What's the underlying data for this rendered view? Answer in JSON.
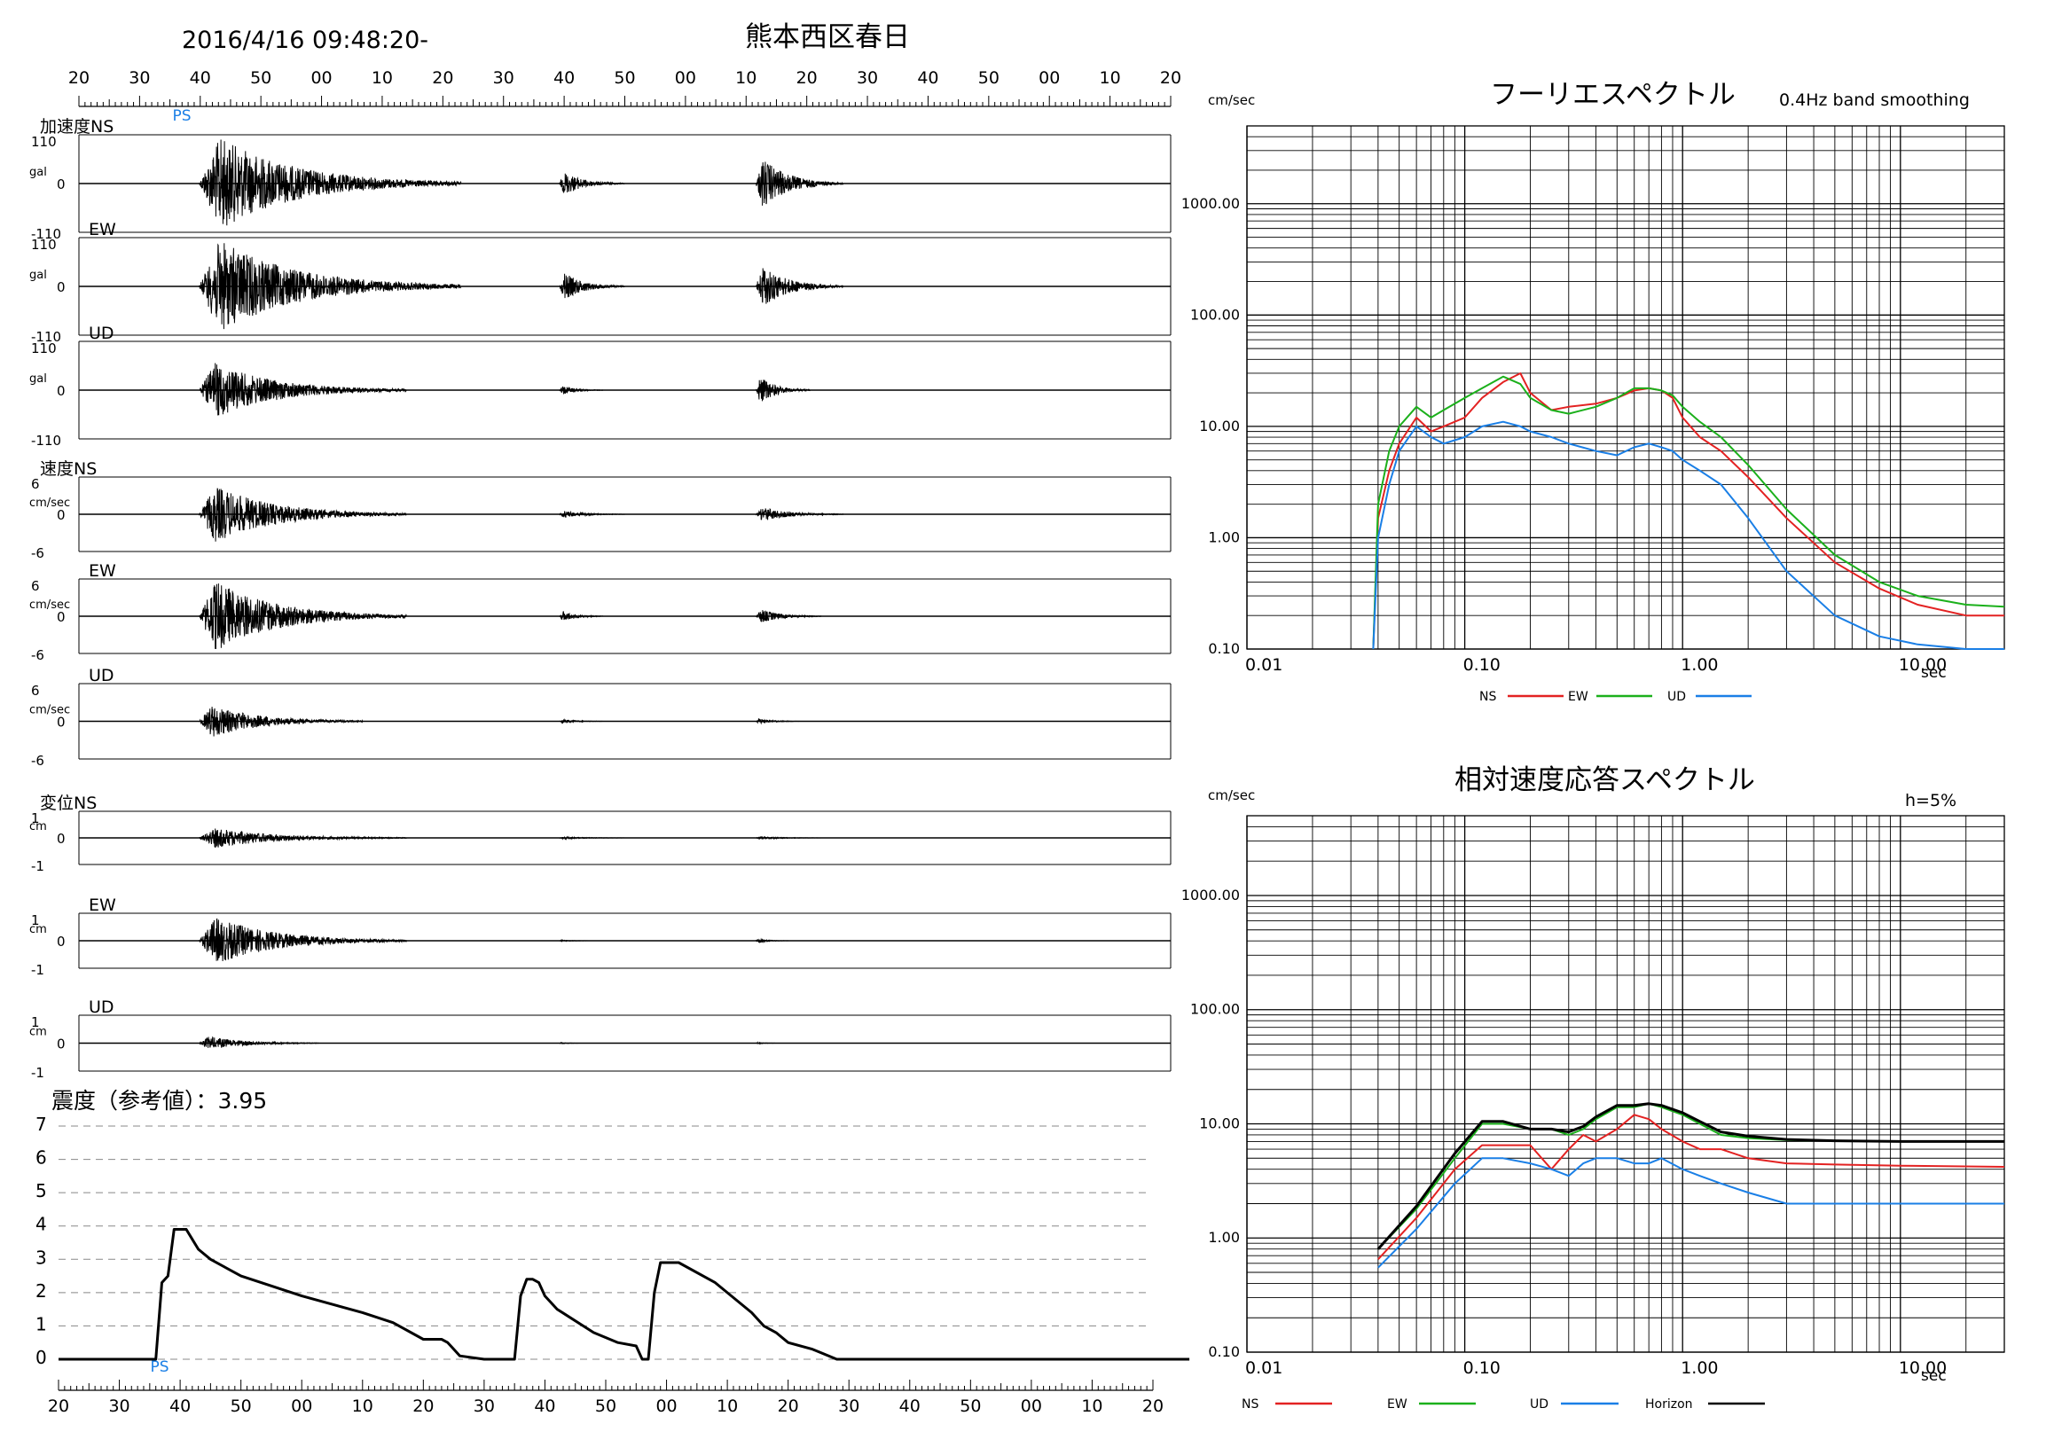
{
  "header": {
    "timestamp": "2016/4/16 09:48:20-",
    "station": "熊本西区春日"
  },
  "time_axis": {
    "top_labels": [
      "20",
      "30",
      "40",
      "50",
      "00",
      "10",
      "20",
      "30",
      "40",
      "50",
      "00",
      "10",
      "20",
      "30",
      "40",
      "50",
      "00",
      "10",
      "20"
    ],
    "bottom_labels": [
      "20",
      "30",
      "40",
      "50",
      "00",
      "10",
      "20",
      "30",
      "40",
      "50",
      "00",
      "10",
      "20",
      "30",
      "40",
      "50",
      "00",
      "10",
      "20"
    ],
    "ps_label": "PS"
  },
  "waveform_panels": [
    {
      "label": "加速度NS",
      "unit": "gal",
      "top": "110",
      "zero": "0",
      "bottom": "-110",
      "bursts": [
        [
          0.11,
          0.35,
          1.0
        ],
        [
          0.44,
          0.5,
          0.25
        ],
        [
          0.62,
          0.7,
          0.55
        ]
      ]
    },
    {
      "label": "EW",
      "unit": "gal",
      "top": "110",
      "zero": "0",
      "bottom": "-110",
      "bursts": [
        [
          0.11,
          0.35,
          1.0
        ],
        [
          0.44,
          0.5,
          0.3
        ],
        [
          0.62,
          0.7,
          0.45
        ]
      ]
    },
    {
      "label": "UD",
      "unit": "gal",
      "top": "110",
      "zero": "0",
      "bottom": "-110",
      "bursts": [
        [
          0.11,
          0.3,
          0.6
        ],
        [
          0.44,
          0.48,
          0.1
        ],
        [
          0.62,
          0.67,
          0.3
        ]
      ]
    },
    {
      "label": "速度NS",
      "unit": "cm/sec",
      "top": "6",
      "zero": "0",
      "bottom": "-6",
      "bursts": [
        [
          0.11,
          0.3,
          0.8
        ],
        [
          0.44,
          0.5,
          0.1
        ],
        [
          0.62,
          0.7,
          0.2
        ]
      ]
    },
    {
      "label": "EW",
      "unit": "cm/sec",
      "top": "6",
      "zero": "0",
      "bottom": "-6",
      "bursts": [
        [
          0.11,
          0.3,
          1.0
        ],
        [
          0.44,
          0.48,
          0.15
        ],
        [
          0.62,
          0.68,
          0.2
        ]
      ]
    },
    {
      "label": "UD",
      "unit": "cm/sec",
      "top": "6",
      "zero": "0",
      "bottom": "-6",
      "bursts": [
        [
          0.11,
          0.26,
          0.45
        ],
        [
          0.44,
          0.48,
          0.06
        ],
        [
          0.62,
          0.66,
          0.08
        ]
      ]
    },
    {
      "label": "変位NS",
      "unit": "cm",
      "top": "1",
      "zero": "0",
      "bottom": "-1",
      "bursts": [
        [
          0.11,
          0.3,
          0.4
        ],
        [
          0.44,
          0.5,
          0.05
        ],
        [
          0.62,
          0.68,
          0.06
        ]
      ]
    },
    {
      "label": "EW",
      "unit": "cm",
      "top": "1",
      "zero": "0",
      "bottom": "-1",
      "bursts": [
        [
          0.11,
          0.3,
          0.9
        ],
        [
          0.44,
          0.47,
          0.03
        ],
        [
          0.62,
          0.65,
          0.08
        ]
      ]
    },
    {
      "label": "UD",
      "unit": "cm",
      "top": "1",
      "zero": "0",
      "bottom": "-1",
      "bursts": [
        [
          0.11,
          0.22,
          0.25
        ],
        [
          0.44,
          0.46,
          0.03
        ],
        [
          0.62,
          0.64,
          0.03
        ]
      ]
    }
  ],
  "intensity": {
    "title": "震度（参考値）：3.95",
    "y_labels": [
      "0",
      "1",
      "2",
      "3",
      "4",
      "5",
      "6",
      "7"
    ]
  },
  "fourier": {
    "title": "フーリエスペクトル",
    "subtitle": "0.4Hz band smoothing",
    "yunit": "cm/sec",
    "y_labels": [
      "0.10",
      "1.00",
      "10.00",
      "100.00",
      "1000.00"
    ],
    "x_labels": [
      "0.01",
      "0.10",
      "1.00",
      "10.00"
    ],
    "x_unit": "sec",
    "legend": [
      "NS",
      "EW",
      "UD"
    ]
  },
  "response": {
    "title": "相対速度応答スペクトル",
    "subtitle": "h=5%",
    "yunit": "cm/sec",
    "y_labels": [
      "0.10",
      "1.00",
      "10.00",
      "100.00",
      "1000.00"
    ],
    "x_labels": [
      "0.01",
      "0.10",
      "1.00",
      "10.00"
    ],
    "x_unit": "sec",
    "legend": [
      "NS",
      "EW",
      "UD",
      "Horizon"
    ]
  },
  "colors": {
    "ns": "#e32222",
    "ew": "#1bb01b",
    "ud": "#1a7fe6",
    "horizon": "#000000",
    "ps": "#1a7fe6"
  },
  "chart_data": [
    {
      "type": "line",
      "title": "震度（参考値）：3.95",
      "xlabel": "",
      "ylabel": "",
      "ylim": [
        0,
        7
      ],
      "x_ticks": [
        "20",
        "30",
        "40",
        "50",
        "00",
        "10",
        "20",
        "30",
        "40",
        "50",
        "00",
        "10",
        "20",
        "30",
        "40",
        "50",
        "00",
        "10",
        "20"
      ],
      "series": [
        {
          "x": [
            0,
            16,
            17,
            18,
            19,
            21,
            22,
            23,
            25,
            30,
            40,
            50,
            55,
            60,
            63,
            64,
            66,
            70,
            72,
            75,
            76,
            77,
            78,
            79,
            80,
            82,
            88,
            92,
            95,
            96,
            97,
            98,
            99,
            100,
            102,
            108,
            112,
            114,
            116,
            118,
            120,
            124,
            128,
            132,
            134,
            136,
            138,
            140,
            142,
            144,
            146,
            148,
            150,
            152,
            160,
            170,
            175,
            176,
            177,
            178,
            179,
            180,
            181,
            182,
            183,
            184,
            186
          ],
          "y": [
            0,
            0,
            2.3,
            2.5,
            3.9,
            3.9,
            3.6,
            3.3,
            3.0,
            2.5,
            1.9,
            1.4,
            1.1,
            0.6,
            0.6,
            0.5,
            0.1,
            0,
            0,
            0,
            1.9,
            2.4,
            2.4,
            2.3,
            1.9,
            1.5,
            0.8,
            0.5,
            0.4,
            0,
            0,
            2.0,
            2.9,
            2.9,
            2.9,
            2.3,
            1.7,
            1.4,
            1.0,
            0.8,
            0.5,
            0.3,
            0,
            0,
            0,
            0,
            0,
            0,
            0,
            0,
            0,
            0,
            0,
            0,
            0,
            0,
            0,
            0,
            0,
            0,
            0,
            0,
            0,
            0,
            0,
            0,
            0
          ]
        }
      ]
    },
    {
      "type": "line",
      "title": "フーリエスペクトル",
      "subtitle": "0.4Hz band smoothing",
      "xlabel": "sec",
      "ylabel": "cm/sec",
      "x_scale": "log",
      "y_scale": "log",
      "xlim": [
        0.01,
        30
      ],
      "ylim": [
        0.1,
        5000
      ],
      "series": [
        {
          "name": "NS",
          "x": [
            0.038,
            0.04,
            0.045,
            0.05,
            0.06,
            0.07,
            0.08,
            0.1,
            0.12,
            0.15,
            0.18,
            0.2,
            0.25,
            0.3,
            0.4,
            0.5,
            0.6,
            0.7,
            0.8,
            0.9,
            1.0,
            1.2,
            1.5,
            2,
            3,
            5,
            8,
            12,
            20,
            30
          ],
          "y": [
            0.1,
            1.5,
            4,
            7,
            12,
            9,
            10,
            12,
            18,
            25,
            30,
            20,
            14,
            15,
            16,
            18,
            21,
            22,
            21,
            18,
            12,
            8,
            6,
            3.5,
            1.5,
            0.6,
            0.35,
            0.25,
            0.2,
            0.2
          ]
        },
        {
          "name": "EW",
          "x": [
            0.038,
            0.04,
            0.045,
            0.05,
            0.06,
            0.07,
            0.08,
            0.1,
            0.12,
            0.15,
            0.18,
            0.2,
            0.25,
            0.3,
            0.4,
            0.5,
            0.6,
            0.7,
            0.8,
            0.9,
            1.0,
            1.2,
            1.5,
            2,
            3,
            5,
            8,
            12,
            20,
            30
          ],
          "y": [
            0.1,
            2,
            6,
            10,
            15,
            12,
            14,
            18,
            22,
            28,
            24,
            18,
            14,
            13,
            15,
            18,
            22,
            22,
            21,
            19,
            15,
            11,
            8,
            4.5,
            1.8,
            0.7,
            0.4,
            0.3,
            0.25,
            0.24
          ]
        },
        {
          "name": "UD",
          "x": [
            0.038,
            0.04,
            0.045,
            0.05,
            0.06,
            0.07,
            0.08,
            0.1,
            0.12,
            0.15,
            0.18,
            0.2,
            0.25,
            0.3,
            0.4,
            0.5,
            0.6,
            0.7,
            0.8,
            0.9,
            1.0,
            1.2,
            1.5,
            2,
            3,
            5,
            8,
            12,
            20,
            30
          ],
          "y": [
            0.1,
            1,
            3,
            6,
            10,
            8,
            7,
            8,
            10,
            11,
            10,
            9,
            8,
            7,
            6,
            5.5,
            6.5,
            7,
            6.5,
            6,
            5,
            4,
            3,
            1.5,
            0.5,
            0.2,
            0.13,
            0.11,
            0.1,
            0.1
          ]
        }
      ]
    },
    {
      "type": "line",
      "title": "相対速度応答スペクトル",
      "subtitle": "h=5%",
      "xlabel": "sec",
      "ylabel": "cm/sec",
      "x_scale": "log",
      "y_scale": "log",
      "xlim": [
        0.01,
        30
      ],
      "ylim": [
        0.1,
        5000
      ],
      "series": [
        {
          "name": "NS",
          "x": [
            0.04,
            0.06,
            0.09,
            0.12,
            0.15,
            0.2,
            0.25,
            0.3,
            0.35,
            0.4,
            0.5,
            0.6,
            0.7,
            0.8,
            1.0,
            1.2,
            1.5,
            2,
            3,
            5,
            10,
            30
          ],
          "y": [
            0.65,
            1.5,
            4,
            6.5,
            6.5,
            6.5,
            4,
            6,
            8,
            7,
            9,
            12,
            11,
            9,
            7,
            6,
            6,
            5,
            4.5,
            4.4,
            4.3,
            4.2
          ]
        },
        {
          "name": "EW",
          "x": [
            0.04,
            0.06,
            0.09,
            0.12,
            0.15,
            0.2,
            0.25,
            0.3,
            0.35,
            0.4,
            0.5,
            0.6,
            0.7,
            0.8,
            1.0,
            1.2,
            1.5,
            2,
            3,
            5,
            10,
            30
          ],
          "y": [
            0.8,
            1.8,
            5,
            10,
            10,
            9,
            9,
            8,
            9,
            11,
            14,
            14,
            15,
            14,
            12,
            10,
            8,
            7.5,
            7.2,
            7.1,
            7,
            7
          ]
        },
        {
          "name": "UD",
          "x": [
            0.04,
            0.06,
            0.09,
            0.12,
            0.15,
            0.2,
            0.25,
            0.3,
            0.35,
            0.4,
            0.5,
            0.6,
            0.7,
            0.8,
            1.0,
            1.2,
            1.5,
            2,
            3,
            5,
            10,
            30
          ],
          "y": [
            0.55,
            1.2,
            3,
            5,
            5,
            4.5,
            4,
            3.5,
            4.5,
            5,
            5,
            4.5,
            4.5,
            5,
            4,
            3.5,
            3,
            2.5,
            2,
            2,
            2,
            2
          ]
        },
        {
          "name": "Horizon",
          "x": [
            0.04,
            0.06,
            0.09,
            0.12,
            0.15,
            0.2,
            0.25,
            0.3,
            0.35,
            0.4,
            0.5,
            0.6,
            0.7,
            0.8,
            1.0,
            1.2,
            1.5,
            2,
            3,
            5,
            10,
            30
          ],
          "y": [
            0.8,
            1.9,
            5.5,
            10.5,
            10.5,
            9,
            9,
            8.5,
            9.5,
            11.5,
            14.5,
            14.5,
            15,
            14.5,
            12.5,
            10.5,
            8.5,
            7.8,
            7.3,
            7.1,
            7,
            7
          ]
        }
      ]
    }
  ]
}
